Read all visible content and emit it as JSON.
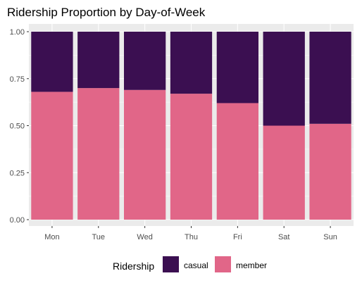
{
  "chart_data": {
    "type": "bar",
    "stacked": true,
    "title": "Ridership Proportion by Day-of-Week",
    "xlabel": "",
    "ylabel": "",
    "ylim": [
      0,
      1
    ],
    "yticks": [
      "0.00",
      "0.25",
      "0.50",
      "0.75",
      "1.00"
    ],
    "categories": [
      "Mon",
      "Tue",
      "Wed",
      "Thu",
      "Fri",
      "Sat",
      "Sun"
    ],
    "series": [
      {
        "name": "member",
        "color": "#E16688",
        "values": [
          0.68,
          0.7,
          0.69,
          0.67,
          0.62,
          0.5,
          0.51
        ]
      },
      {
        "name": "casual",
        "color": "#3B0F51",
        "values": [
          0.32,
          0.3,
          0.31,
          0.33,
          0.38,
          0.5,
          0.49
        ]
      }
    ],
    "grid": true,
    "legend": {
      "title": "Ridership",
      "position": "bottom",
      "entries": [
        {
          "label": "casual",
          "color": "#3B0F51"
        },
        {
          "label": "member",
          "color": "#E16688"
        }
      ]
    },
    "panel_background": "#EBEBEB",
    "gridline_color": "#FFFFFF"
  }
}
